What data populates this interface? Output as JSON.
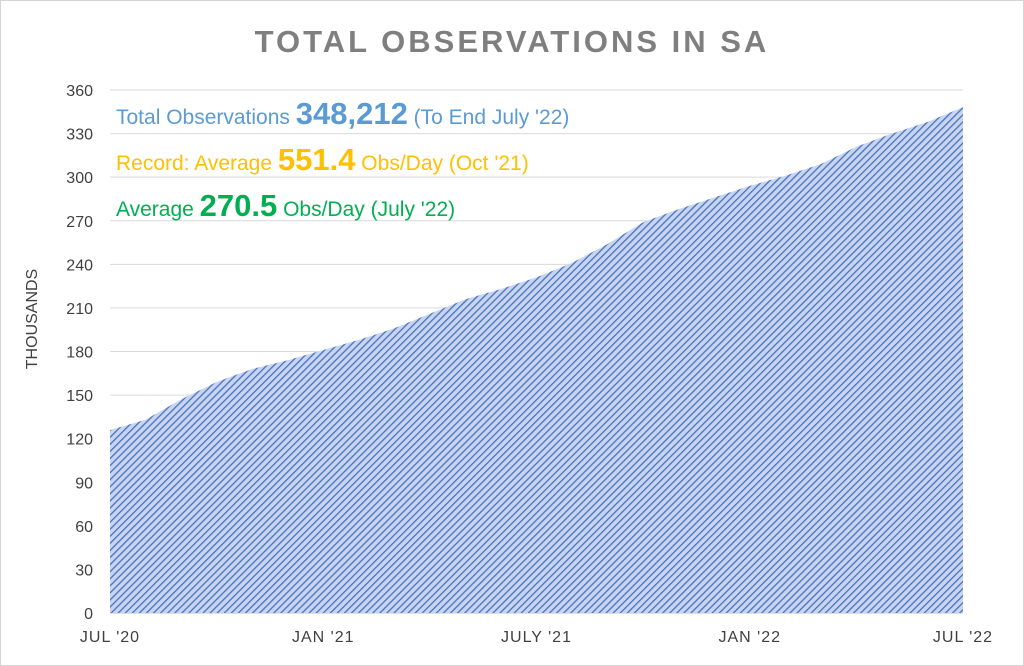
{
  "chart_data": {
    "type": "area",
    "title": "TOTAL OBSERVATIONS IN SA",
    "xlabel": "",
    "ylabel": "THOUSANDS",
    "ylim": [
      0,
      360
    ],
    "yticks": [
      0,
      30,
      60,
      90,
      120,
      150,
      180,
      210,
      240,
      270,
      300,
      330,
      360
    ],
    "xticks": [
      "JUL '20",
      "JAN '21",
      "JULY '21",
      "JAN '22",
      "JUL '22"
    ],
    "grid": true,
    "fill_color": "#4472c4",
    "fill_pattern": "diagonal-hatch",
    "x": [
      "2020-07",
      "2020-08",
      "2020-09",
      "2020-10",
      "2020-11",
      "2020-12",
      "2021-01",
      "2021-02",
      "2021-03",
      "2021-04",
      "2021-05",
      "2021-06",
      "2021-07",
      "2021-08",
      "2021-09",
      "2021-10",
      "2021-11",
      "2021-12",
      "2022-01",
      "2022-02",
      "2022-03",
      "2022-04",
      "2022-05",
      "2022-06",
      "2022-07"
    ],
    "values": [
      126,
      133,
      147,
      159,
      168,
      174,
      181,
      188,
      196,
      206,
      216,
      223,
      231,
      241,
      254,
      269,
      278,
      286,
      294,
      301,
      309,
      321,
      330,
      338,
      348.212
    ],
    "annotations": [
      {
        "prefix": "Total Observations ",
        "value": "348,212",
        "suffix": " (To End July '22)",
        "color": "#5b9bd5"
      },
      {
        "prefix": "Record: Average ",
        "value": "551.4",
        "suffix": " Obs/Day (Oct '21)",
        "color": "#ffc000"
      },
      {
        "prefix": "Average ",
        "value": "270.5",
        "suffix": " Obs/Day (July '22)",
        "color": "#00b050"
      }
    ]
  }
}
